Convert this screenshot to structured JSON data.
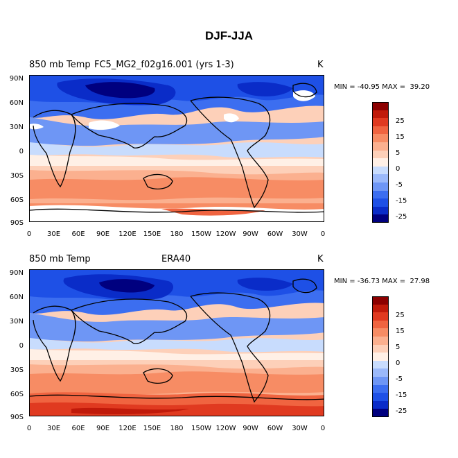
{
  "figure_title": "DJF-JJA",
  "colors": {
    "levels": [
      "#00007f",
      "#0a2cc8",
      "#1e50e6",
      "#3c6ef0",
      "#6e96f5",
      "#9bb9fa",
      "#c8dcfd",
      "#fff0e6",
      "#fdd0b9",
      "#fbb08f",
      "#f78c64",
      "#f06440",
      "#e03a20",
      "#c01a0a",
      "#8c0000"
    ],
    "white": "#ffffff",
    "coast": "#000000"
  },
  "colorbar_labels": [
    "25",
    "15",
    "5",
    "0",
    "-5",
    "-15",
    "-25"
  ],
  "y_ticks": [
    "90N",
    "60N",
    "30N",
    "0",
    "30S",
    "60S",
    "90S"
  ],
  "x_ticks": [
    "0",
    "30E",
    "60E",
    "90E",
    "120E",
    "150E",
    "180",
    "150W",
    "120W",
    "90W",
    "60W",
    "30W",
    "0"
  ],
  "panels": [
    {
      "left_label": "850 mb Temp",
      "center_label": "FC5_MG2_f02g16.001 (yrs 1-3)",
      "unit": "K",
      "min_label": "MIN =",
      "min": "-40.95",
      "max_label": "MAX =",
      "max": "39.20"
    },
    {
      "left_label": "850 mb Temp",
      "center_label": "ERA40",
      "unit": "K",
      "min_label": "MIN =",
      "min": "-36.73",
      "max_label": "MAX =",
      "max": "27.98"
    }
  ]
}
